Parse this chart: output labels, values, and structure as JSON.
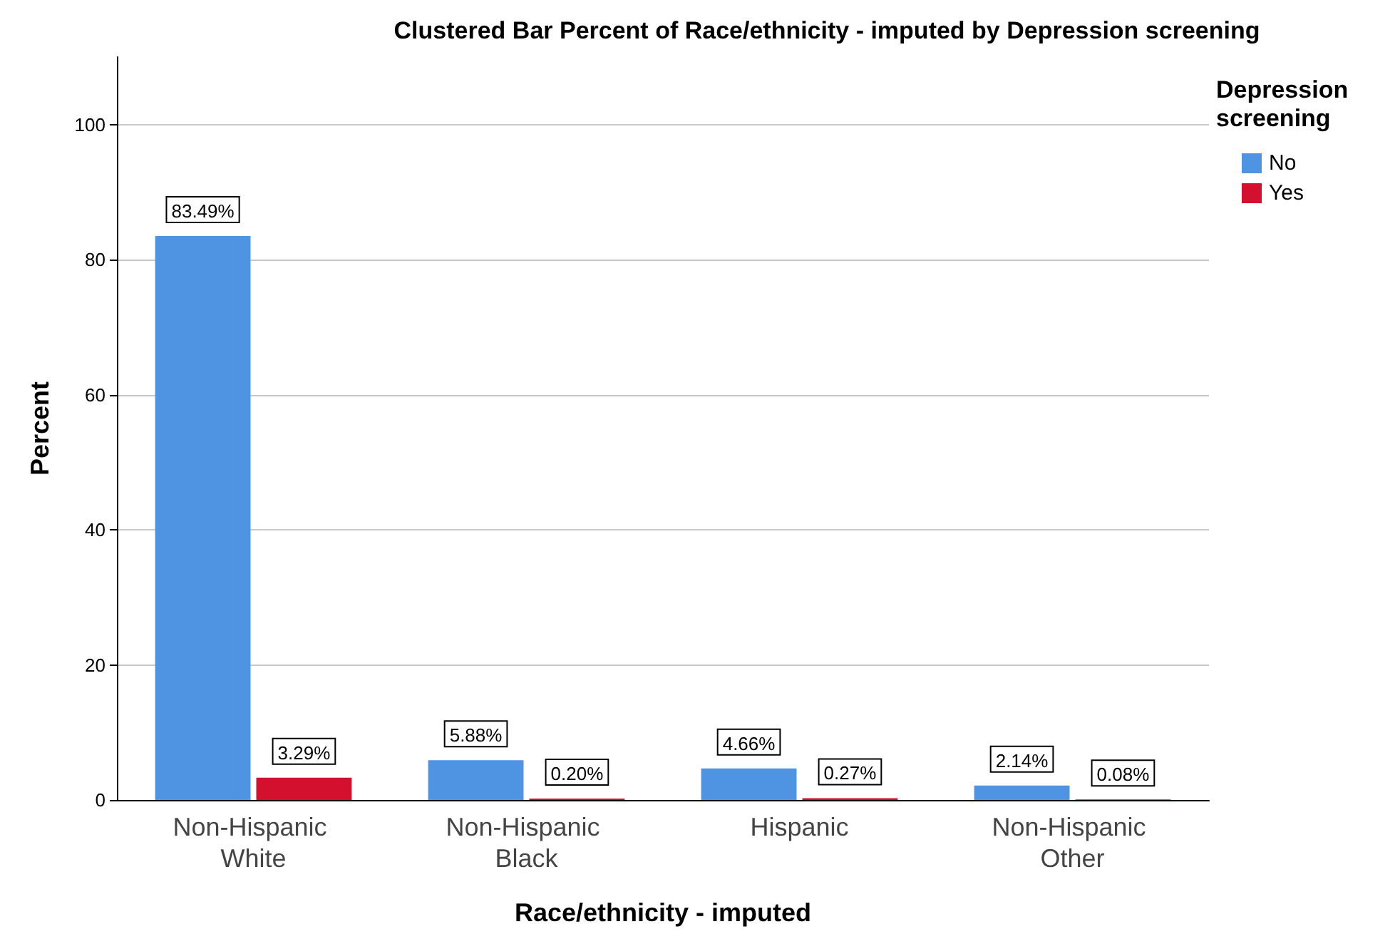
{
  "chart_data": {
    "type": "bar",
    "title": "Clustered Bar Percent of Race/ethnicity - imputed by Depression screening",
    "xlabel": "Race/ethnicity - imputed",
    "ylabel": "Percent",
    "legend_title": "Depression screening",
    "categories": [
      "Non-Hispanic White",
      "Non-Hispanic Black",
      "Hispanic",
      "Non-Hispanic Other"
    ],
    "series": [
      {
        "name": "No",
        "color": "#4f94e3",
        "values": [
          83.49,
          5.88,
          4.66,
          2.14
        ],
        "value_labels": [
          "83.49%",
          "5.88%",
          "4.66%",
          "2.14%"
        ]
      },
      {
        "name": "Yes",
        "color": "#d3112f",
        "values": [
          3.29,
          0.2,
          0.27,
          0.08
        ],
        "value_labels": [
          "3.29%",
          "0.20%",
          "0.27%",
          "0.08%"
        ]
      }
    ],
    "ylim": [
      0,
      110
    ],
    "yticks": [
      0,
      20,
      40,
      60,
      80,
      100
    ],
    "grid": "y",
    "legend": "top right"
  }
}
